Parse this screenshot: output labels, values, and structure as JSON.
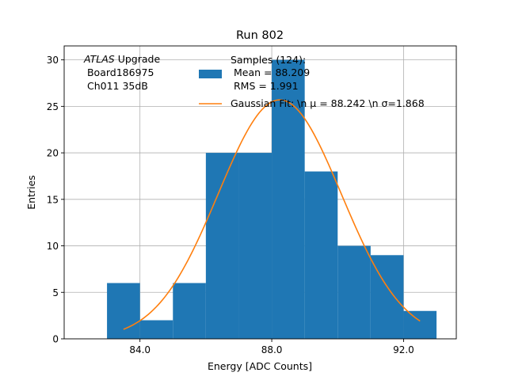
{
  "chart_data": {
    "type": "histogram",
    "title": "Run 802",
    "xlabel": "Energy [ADC Counts]",
    "ylabel": "Entries",
    "xlim": [
      81.7,
      93.6
    ],
    "ylim": [
      0,
      31.5
    ],
    "xticks": [
      84,
      88,
      92
    ],
    "xtick_labels": [
      "84.0",
      "88.0",
      "92.0"
    ],
    "yticks": [
      0,
      5,
      10,
      15,
      20,
      25,
      30
    ],
    "grid": true,
    "bin_edges": [
      83,
      84,
      85,
      86,
      87,
      88,
      89,
      90,
      91,
      92,
      93
    ],
    "counts": [
      6,
      2,
      6,
      20,
      20,
      30,
      18,
      10,
      9,
      3
    ],
    "fit": {
      "type": "gaussian",
      "mu": 88.242,
      "sigma": 1.868,
      "amplitude": 25.7,
      "x_range": [
        83.5,
        92.5
      ]
    },
    "colors": {
      "hist": "#1f77b4",
      "fit": "#ff7f0e",
      "grid": "#b0b0b0"
    },
    "annotation": {
      "italic": "ATLAS",
      "line1_rest": " Upgrade",
      "line2": " Board186975",
      "line3": " Ch011 35dB"
    },
    "legend": {
      "placement": "upper-right",
      "hist_label_lines": [
        "Samples (124):",
        " Mean = 88.209",
        " RMS = 1.991"
      ],
      "fit_label": "Gaussian Fit: \\n μ = 88.242 \\n σ=1.868"
    }
  }
}
